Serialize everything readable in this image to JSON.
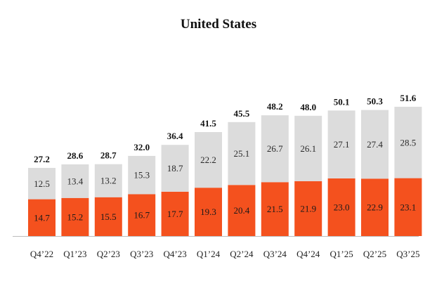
{
  "chart_data": {
    "type": "bar",
    "stacked": true,
    "title": "United States",
    "xlabel": "",
    "ylabel": "",
    "ylim": [
      0,
      51.6
    ],
    "grid": false,
    "legend": "none",
    "categories": [
      "Q4’22",
      "Q1’23",
      "Q2’23",
      "Q3’23",
      "Q4’23",
      "Q1’24",
      "Q2’24",
      "Q3’24",
      "Q4’24",
      "Q1’25",
      "Q2’25",
      "Q3’25"
    ],
    "series": [
      {
        "name": "bottom",
        "color": "#f4511e",
        "label_color": "#1a1a1a",
        "values": [
          14.7,
          15.2,
          15.5,
          16.7,
          17.7,
          19.3,
          20.4,
          21.5,
          21.9,
          23.0,
          22.9,
          23.1
        ],
        "labels": [
          "14.7",
          "15.2",
          "15.5",
          "16.7",
          "17.7",
          "19.3",
          "20.4",
          "21.5",
          "21.9",
          "23.0",
          "22.9",
          "23.1"
        ]
      },
      {
        "name": "top",
        "color": "#dcdcdc",
        "label_color": "#2a2a2a",
        "values": [
          12.5,
          13.4,
          13.2,
          15.3,
          18.7,
          22.2,
          25.1,
          26.7,
          26.1,
          27.1,
          27.4,
          28.5
        ],
        "labels": [
          "12.5",
          "13.4",
          "13.2",
          "15.3",
          "18.7",
          "22.2",
          "25.1",
          "26.7",
          "26.1",
          "27.1",
          "27.4",
          "28.5"
        ]
      }
    ],
    "totals": [
      27.2,
      28.6,
      28.7,
      32.0,
      36.4,
      41.5,
      45.5,
      48.2,
      48.0,
      50.1,
      50.3,
      51.6
    ],
    "total_labels": [
      "27.2",
      "28.6",
      "28.7",
      "32.0",
      "36.4",
      "41.5",
      "45.5",
      "48.2",
      "48.0",
      "50.1",
      "50.3",
      "51.6"
    ]
  }
}
